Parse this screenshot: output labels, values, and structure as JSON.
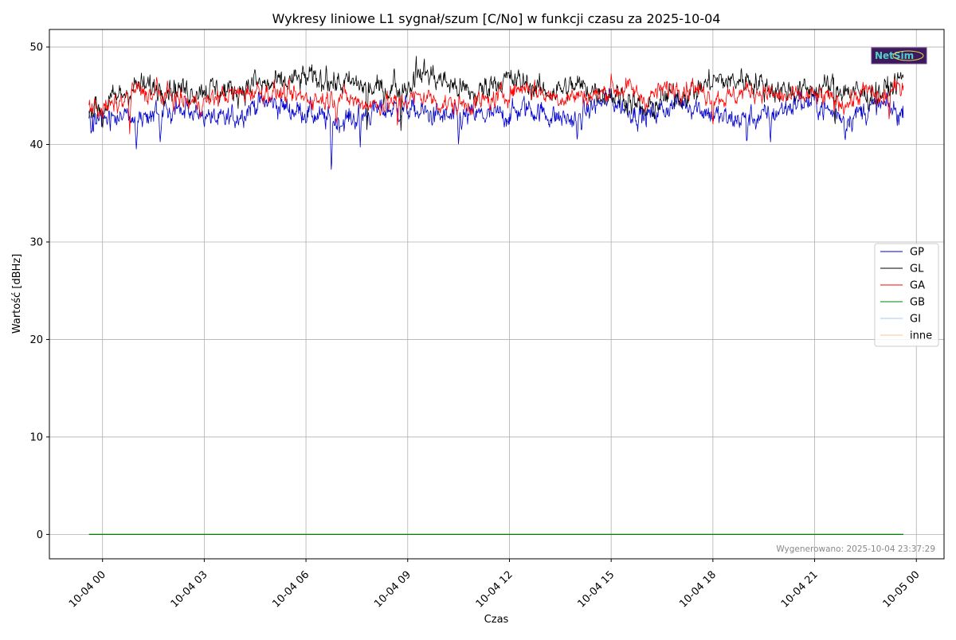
{
  "chart_data": {
    "type": "line",
    "title": "Wykresy liniowe L1 sygnał/szum [C/No] w funkcji czasu za 2025-10-04",
    "xlabel": "Czas",
    "ylabel": "Wartość [dBHz]",
    "ylim": [
      -2.5,
      51.8
    ],
    "xlim": [
      "2025-10-03 22:26",
      "2025-10-05 00:49"
    ],
    "x_range": [
      "2025-10-03 23:36",
      "2025-10-04 23:37"
    ],
    "yticks": [
      0,
      10,
      20,
      30,
      40,
      50
    ],
    "xticks": [
      {
        "label": "10-04 00",
        "t": "2025-10-04 00:00"
      },
      {
        "label": "10-04 03",
        "t": "2025-10-04 03:00"
      },
      {
        "label": "10-04 06",
        "t": "2025-10-04 06:00"
      },
      {
        "label": "10-04 09",
        "t": "2025-10-04 09:00"
      },
      {
        "label": "10-04 12",
        "t": "2025-10-04 12:00"
      },
      {
        "label": "10-04 15",
        "t": "2025-10-04 15:00"
      },
      {
        "label": "10-04 18",
        "t": "2025-10-04 18:00"
      },
      {
        "label": "10-04 21",
        "t": "2025-10-04 21:00"
      },
      {
        "label": "10-05 00",
        "t": "2025-10-05 00:00"
      }
    ],
    "grid": true,
    "legend_position": "center-right",
    "series": [
      {
        "name": "GP",
        "color": "#0000cc",
        "baseline": [
          [
            -0.4,
            43
          ],
          [
            0,
            42.8
          ],
          [
            0.5,
            42.5
          ],
          [
            1,
            43.2
          ],
          [
            1.5,
            42.8
          ],
          [
            2,
            43.5
          ],
          [
            2.5,
            43.2
          ],
          [
            3,
            43
          ],
          [
            3.5,
            42.3
          ],
          [
            4,
            43
          ],
          [
            4.5,
            44.2
          ],
          [
            5,
            44.3
          ],
          [
            5.5,
            43.6
          ],
          [
            6,
            43.4
          ],
          [
            6.5,
            42.6
          ],
          [
            7,
            42.4
          ],
          [
            7.5,
            42.8
          ],
          [
            8,
            43.4
          ],
          [
            8.5,
            43.6
          ],
          [
            9,
            43.6
          ],
          [
            9.5,
            43.2
          ],
          [
            10,
            42.8
          ],
          [
            10.5,
            42.6
          ],
          [
            11,
            43
          ],
          [
            11.5,
            42.9
          ],
          [
            12,
            43.1
          ],
          [
            12.5,
            43.8
          ],
          [
            13,
            43.2
          ],
          [
            13.5,
            42.7
          ],
          [
            14,
            42.5
          ],
          [
            14.5,
            44
          ],
          [
            15,
            44.6
          ],
          [
            15.5,
            43.6
          ],
          [
            16,
            42.8
          ],
          [
            16.5,
            43.6
          ],
          [
            17,
            44.3
          ],
          [
            17.5,
            44
          ],
          [
            18,
            43
          ],
          [
            18.5,
            42.5
          ],
          [
            19,
            42.7
          ],
          [
            19.5,
            42.8
          ],
          [
            20,
            43.5
          ],
          [
            20.5,
            44.3
          ],
          [
            21,
            44.3
          ],
          [
            21.5,
            43.2
          ],
          [
            22,
            42.8
          ],
          [
            22.5,
            43.5
          ],
          [
            23,
            44
          ],
          [
            23.6,
            43
          ]
        ],
        "noise": 0.7,
        "drops": [
          [
            6.75,
            36.8
          ],
          [
            1.0,
            39.3
          ],
          [
            7.6,
            39.7
          ],
          [
            10.5,
            39.9
          ],
          [
            19,
            40
          ],
          [
            19.7,
            40.2
          ],
          [
            21.9,
            40.2
          ],
          [
            14,
            40.2
          ],
          [
            1.7,
            40.2
          ]
        ]
      },
      {
        "name": "GL",
        "color": "#000000",
        "baseline": [
          [
            -0.4,
            44
          ],
          [
            0,
            43.8
          ],
          [
            0.5,
            45
          ],
          [
            1,
            46
          ],
          [
            1.5,
            45.8
          ],
          [
            2,
            46
          ],
          [
            2.5,
            45.5
          ],
          [
            3,
            45.8
          ],
          [
            3.5,
            45.5
          ],
          [
            4,
            45.6
          ],
          [
            4.5,
            46.2
          ],
          [
            5,
            46
          ],
          [
            5.5,
            46.4
          ],
          [
            6,
            46.8
          ],
          [
            6.5,
            46.5
          ],
          [
            7,
            46.2
          ],
          [
            7.5,
            46.2
          ],
          [
            8,
            45.6
          ],
          [
            8.5,
            45.7
          ],
          [
            9,
            46
          ],
          [
            9.5,
            47.4
          ],
          [
            10,
            46.6
          ],
          [
            10.5,
            45.8
          ],
          [
            11,
            45
          ],
          [
            11.5,
            46.5
          ],
          [
            12,
            46.6
          ],
          [
            12.5,
            46.3
          ],
          [
            13,
            45.4
          ],
          [
            13.5,
            45.6
          ],
          [
            14,
            46
          ],
          [
            14.5,
            45.6
          ],
          [
            15,
            45.2
          ],
          [
            15.5,
            44.8
          ],
          [
            16,
            43.2
          ],
          [
            16.5,
            44.6
          ],
          [
            17,
            45.2
          ],
          [
            17.5,
            45.5
          ],
          [
            18,
            46.6
          ],
          [
            18.5,
            46.4
          ],
          [
            19,
            46.8
          ],
          [
            19.5,
            46
          ],
          [
            20,
            45.6
          ],
          [
            20.5,
            45.5
          ],
          [
            21,
            45.6
          ],
          [
            21.5,
            46
          ],
          [
            22,
            45.5
          ],
          [
            22.5,
            45
          ],
          [
            23,
            45.3
          ],
          [
            23.6,
            46.8
          ]
        ],
        "noise": 0.75,
        "drops": [
          [
            9.25,
            49.2
          ],
          [
            6.6,
            48.4
          ],
          [
            4.5,
            47.8
          ],
          [
            8.6,
            47.9
          ],
          [
            0,
            41.5
          ],
          [
            7.8,
            41
          ],
          [
            8.8,
            41.3
          ],
          [
            21.6,
            41.6
          ]
        ]
      },
      {
        "name": "GA",
        "color": "#ff0000",
        "baseline": [
          [
            -0.4,
            44
          ],
          [
            0,
            43.6
          ],
          [
            0.5,
            44.2
          ],
          [
            1,
            45.6
          ],
          [
            1.5,
            45
          ],
          [
            2,
            45
          ],
          [
            2.5,
            44.3
          ],
          [
            3,
            44.3
          ],
          [
            3.5,
            45
          ],
          [
            4,
            45.2
          ],
          [
            4.5,
            45.5
          ],
          [
            5,
            45.4
          ],
          [
            5.5,
            45
          ],
          [
            6,
            44.8
          ],
          [
            6.5,
            44.6
          ],
          [
            7,
            45
          ],
          [
            7.5,
            44.4
          ],
          [
            8,
            44.1
          ],
          [
            8.5,
            44.3
          ],
          [
            9,
            44.6
          ],
          [
            9.5,
            45
          ],
          [
            10,
            44.2
          ],
          [
            10.5,
            44
          ],
          [
            11,
            44.3
          ],
          [
            11.5,
            44.5
          ],
          [
            12,
            45.4
          ],
          [
            12.5,
            46
          ],
          [
            13,
            45.2
          ],
          [
            13.5,
            44.8
          ],
          [
            14,
            45
          ],
          [
            14.5,
            45
          ],
          [
            15,
            45.5
          ],
          [
            15.5,
            45.8
          ],
          [
            16,
            44.6
          ],
          [
            16.5,
            45.6
          ],
          [
            17,
            46
          ],
          [
            17.5,
            45.6
          ],
          [
            18,
            45
          ],
          [
            18.5,
            44.8
          ],
          [
            19,
            45.5
          ],
          [
            19.5,
            45.4
          ],
          [
            20,
            44.8
          ],
          [
            20.5,
            44.8
          ],
          [
            21,
            45
          ],
          [
            21.5,
            44.6
          ],
          [
            22,
            44.2
          ],
          [
            22.5,
            45.5
          ],
          [
            23,
            44.6
          ],
          [
            23.6,
            46.2
          ]
        ],
        "noise": 0.6,
        "drops": [
          [
            0.8,
            41
          ],
          [
            6.9,
            42
          ],
          [
            8.7,
            41.7
          ],
          [
            18,
            41.9
          ],
          [
            23.2,
            42.4
          ],
          [
            1.6,
            47
          ],
          [
            15,
            47.3
          ],
          [
            17.4,
            46.9
          ]
        ]
      },
      {
        "name": "GB",
        "color": "#008000",
        "y_value": 0
      },
      {
        "name": "GI",
        "color": "#a8c8ee",
        "y_value": 0
      },
      {
        "name": "inne",
        "color": "#f5c79a",
        "y_value": 0
      }
    ]
  },
  "footer_text": "Wygenerowano: 2025-10-04 23:37:29",
  "logo_text": "NetSim"
}
